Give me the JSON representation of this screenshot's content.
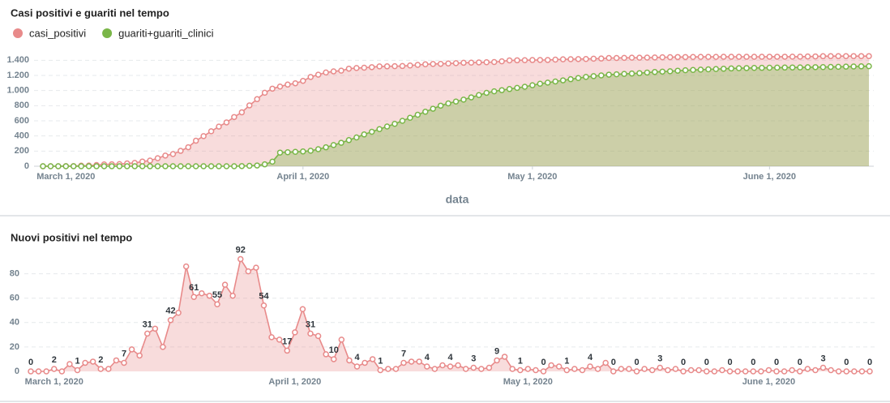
{
  "chart_data": [
    {
      "type": "area",
      "title": "Casi positivi e guariti nel tempo",
      "x_label": "data",
      "legend": "top-left",
      "grid": true,
      "x": [
        "2020-02-27",
        "2020-02-28",
        "2020-02-29",
        "2020-03-01",
        "2020-03-02",
        "2020-03-03",
        "2020-03-04",
        "2020-03-05",
        "2020-03-06",
        "2020-03-07",
        "2020-03-08",
        "2020-03-09",
        "2020-03-10",
        "2020-03-11",
        "2020-03-12",
        "2020-03-13",
        "2020-03-14",
        "2020-03-15",
        "2020-03-16",
        "2020-03-17",
        "2020-03-18",
        "2020-03-19",
        "2020-03-20",
        "2020-03-21",
        "2020-03-22",
        "2020-03-23",
        "2020-03-24",
        "2020-03-25",
        "2020-03-26",
        "2020-03-27",
        "2020-03-28",
        "2020-03-29",
        "2020-03-30",
        "2020-03-31",
        "2020-04-01",
        "2020-04-02",
        "2020-04-03",
        "2020-04-04",
        "2020-04-05",
        "2020-04-06",
        "2020-04-07",
        "2020-04-08",
        "2020-04-09",
        "2020-04-10",
        "2020-04-11",
        "2020-04-12",
        "2020-04-13",
        "2020-04-14",
        "2020-04-15",
        "2020-04-16",
        "2020-04-17",
        "2020-04-18",
        "2020-04-19",
        "2020-04-20",
        "2020-04-21",
        "2020-04-22",
        "2020-04-23",
        "2020-04-24",
        "2020-04-25",
        "2020-04-26",
        "2020-04-27",
        "2020-04-28",
        "2020-04-29",
        "2020-04-30",
        "2020-05-01",
        "2020-05-02",
        "2020-05-03",
        "2020-05-04",
        "2020-05-05",
        "2020-05-06",
        "2020-05-07",
        "2020-05-08",
        "2020-05-09",
        "2020-05-10",
        "2020-05-11",
        "2020-05-12",
        "2020-05-13",
        "2020-05-14",
        "2020-05-15",
        "2020-05-16",
        "2020-05-17",
        "2020-05-18",
        "2020-05-19",
        "2020-05-20",
        "2020-05-21",
        "2020-05-22",
        "2020-05-23",
        "2020-05-24",
        "2020-05-25",
        "2020-05-26",
        "2020-05-27",
        "2020-05-28",
        "2020-05-29",
        "2020-05-30",
        "2020-05-31",
        "2020-06-01",
        "2020-06-02",
        "2020-06-03",
        "2020-06-04",
        "2020-06-05",
        "2020-06-06",
        "2020-06-07",
        "2020-06-08",
        "2020-06-09",
        "2020-06-10",
        "2020-06-11",
        "2020-06-12",
        "2020-06-13",
        "2020-06-14"
      ],
      "xlim": [
        "2020-02-27",
        "2020-06-14"
      ],
      "xticks": [
        {
          "value": "2020-03-01",
          "label": "March 1, 2020"
        },
        {
          "value": "2020-04-01",
          "label": "April 1, 2020"
        },
        {
          "value": "2020-05-01",
          "label": "May 1, 2020"
        },
        {
          "value": "2020-06-01",
          "label": "June 1, 2020"
        }
      ],
      "ylim": [
        0,
        1500
      ],
      "yticks": [
        0,
        200,
        400,
        600,
        800,
        {
          "value": 1000,
          "label": "1.000"
        },
        {
          "value": 1200,
          "label": "1.200"
        },
        {
          "value": 1400,
          "label": "1.400"
        }
      ],
      "series": [
        {
          "name": "casi_positivi",
          "color": "#e88a8a",
          "values": [
            0,
            0,
            0,
            2,
            2,
            8,
            9,
            16,
            24,
            26,
            28,
            37,
            44,
            62,
            75,
            106,
            141,
            161,
            203,
            251,
            337,
            398,
            462,
            524,
            579,
            650,
            712,
            804,
            886,
            971,
            1025,
            1053,
            1079,
            1096,
            1128,
            1179,
            1210,
            1239,
            1253,
            1263,
            1289,
            1298,
            1302,
            1309,
            1319,
            1320,
            1322,
            1324,
            1331,
            1339,
            1347,
            1351,
            1353,
            1358,
            1362,
            1367,
            1369,
            1372,
            1374,
            1377,
            1386,
            1398,
            1400,
            1401,
            1403,
            1404,
            1404,
            1409,
            1413,
            1414,
            1416,
            1417,
            1421,
            1423,
            1430,
            1430,
            1432,
            1434,
            1434,
            1436,
            1437,
            1440,
            1441,
            1443,
            1443,
            1444,
            1445,
            1445,
            1445,
            1446,
            1446,
            1446,
            1446,
            1446,
            1446,
            1447,
            1447,
            1447,
            1448,
            1448,
            1450,
            1451,
            1454,
            1455,
            1455,
            1455,
            1455,
            1455,
            1455
          ]
        },
        {
          "name": "guariti+guariti_clinici",
          "color": "#7ab648",
          "values": [
            0,
            0,
            0,
            0,
            0,
            0,
            0,
            0,
            0,
            0,
            0,
            0,
            0,
            0,
            0,
            0,
            0,
            0,
            0,
            0,
            0,
            0,
            0,
            0,
            0,
            0,
            2,
            5,
            10,
            25,
            60,
            180,
            185,
            190,
            195,
            205,
            225,
            250,
            280,
            310,
            345,
            380,
            420,
            455,
            490,
            525,
            560,
            600,
            640,
            680,
            720,
            760,
            800,
            830,
            855,
            880,
            910,
            940,
            970,
            990,
            1005,
            1020,
            1035,
            1050,
            1070,
            1090,
            1105,
            1120,
            1135,
            1150,
            1165,
            1180,
            1190,
            1200,
            1210,
            1215,
            1220,
            1225,
            1230,
            1238,
            1245,
            1250,
            1255,
            1262,
            1268,
            1272,
            1276,
            1280,
            1284,
            1288,
            1292,
            1295,
            1297,
            1299,
            1300,
            1302,
            1303,
            1304,
            1305,
            1306,
            1308,
            1309,
            1310,
            1312,
            1314,
            1316,
            1318,
            1320,
            1322
          ]
        }
      ]
    },
    {
      "type": "area",
      "title": "Nuovi positivi nel tempo",
      "grid": true,
      "color": "#e88a8a",
      "x": [
        "2020-02-27",
        "2020-02-28",
        "2020-02-29",
        "2020-03-01",
        "2020-03-02",
        "2020-03-03",
        "2020-03-04",
        "2020-03-05",
        "2020-03-06",
        "2020-03-07",
        "2020-03-08",
        "2020-03-09",
        "2020-03-10",
        "2020-03-11",
        "2020-03-12",
        "2020-03-13",
        "2020-03-14",
        "2020-03-15",
        "2020-03-16",
        "2020-03-17",
        "2020-03-18",
        "2020-03-19",
        "2020-03-20",
        "2020-03-21",
        "2020-03-22",
        "2020-03-23",
        "2020-03-24",
        "2020-03-25",
        "2020-03-26",
        "2020-03-27",
        "2020-03-28",
        "2020-03-29",
        "2020-03-30",
        "2020-03-31",
        "2020-04-01",
        "2020-04-02",
        "2020-04-03",
        "2020-04-04",
        "2020-04-05",
        "2020-04-06",
        "2020-04-07",
        "2020-04-08",
        "2020-04-09",
        "2020-04-10",
        "2020-04-11",
        "2020-04-12",
        "2020-04-13",
        "2020-04-14",
        "2020-04-15",
        "2020-04-16",
        "2020-04-17",
        "2020-04-18",
        "2020-04-19",
        "2020-04-20",
        "2020-04-21",
        "2020-04-22",
        "2020-04-23",
        "2020-04-24",
        "2020-04-25",
        "2020-04-26",
        "2020-04-27",
        "2020-04-28",
        "2020-04-29",
        "2020-04-30",
        "2020-05-01",
        "2020-05-02",
        "2020-05-03",
        "2020-05-04",
        "2020-05-05",
        "2020-05-06",
        "2020-05-07",
        "2020-05-08",
        "2020-05-09",
        "2020-05-10",
        "2020-05-11",
        "2020-05-12",
        "2020-05-13",
        "2020-05-14",
        "2020-05-15",
        "2020-05-16",
        "2020-05-17",
        "2020-05-18",
        "2020-05-19",
        "2020-05-20",
        "2020-05-21",
        "2020-05-22",
        "2020-05-23",
        "2020-05-24",
        "2020-05-25",
        "2020-05-26",
        "2020-05-27",
        "2020-05-28",
        "2020-05-29",
        "2020-05-30",
        "2020-05-31",
        "2020-06-01",
        "2020-06-02",
        "2020-06-03",
        "2020-06-04",
        "2020-06-05",
        "2020-06-06",
        "2020-06-07",
        "2020-06-08",
        "2020-06-09",
        "2020-06-10",
        "2020-06-11",
        "2020-06-12",
        "2020-06-13",
        "2020-06-14"
      ],
      "xlim": [
        "2020-02-27",
        "2020-06-14"
      ],
      "xticks": [
        {
          "value": "2020-03-01",
          "label": "March 1, 2020"
        },
        {
          "value": "2020-04-01",
          "label": "April 1, 2020"
        },
        {
          "value": "2020-05-01",
          "label": "May 1, 2020"
        },
        {
          "value": "2020-06-01",
          "label": "June 1, 2020"
        }
      ],
      "ylim": [
        0,
        105
      ],
      "yticks": [
        0,
        20,
        40,
        60,
        80
      ],
      "values": [
        0,
        0,
        0,
        2,
        0,
        6,
        1,
        7,
        8,
        2,
        2,
        9,
        7,
        18,
        13,
        31,
        35,
        20,
        42,
        48,
        86,
        61,
        64,
        62,
        55,
        71,
        62,
        92,
        82,
        85,
        54,
        28,
        26,
        17,
        32,
        51,
        31,
        29,
        14,
        10,
        26,
        9,
        4,
        7,
        10,
        1,
        2,
        2,
        7,
        8,
        8,
        4,
        2,
        5,
        4,
        5,
        2,
        3,
        2,
        3,
        9,
        12,
        2,
        1,
        2,
        1,
        0,
        5,
        4,
        1,
        2,
        1,
        4,
        2,
        7,
        0,
        2,
        2,
        0,
        2,
        1,
        3,
        1,
        2,
        0,
        1,
        1,
        0,
        0,
        1,
        0,
        0,
        0,
        0,
        0,
        1,
        0,
        0,
        1,
        0,
        2,
        1,
        3,
        1,
        0,
        0,
        0,
        0,
        0
      ],
      "value_labels": [
        "0",
        null,
        null,
        "2",
        null,
        null,
        "1",
        null,
        null,
        "2",
        null,
        null,
        "7",
        null,
        null,
        "31",
        null,
        null,
        "42",
        null,
        null,
        "61",
        null,
        null,
        "55",
        null,
        null,
        "92",
        null,
        null,
        "54",
        null,
        null,
        "17",
        null,
        null,
        "31",
        null,
        null,
        "10",
        null,
        null,
        "4",
        null,
        null,
        "1",
        null,
        null,
        "7",
        null,
        null,
        "4",
        null,
        null,
        "4",
        null,
        null,
        "3",
        null,
        null,
        "9",
        null,
        null,
        "1",
        null,
        null,
        "0",
        null,
        null,
        "1",
        null,
        null,
        "4",
        null,
        null,
        "0",
        null,
        null,
        "0",
        null,
        null,
        "3",
        null,
        null,
        "0",
        null,
        null,
        "0",
        null,
        null,
        "0",
        null,
        null,
        "0",
        null,
        null,
        "0",
        null,
        null,
        "0",
        null,
        null,
        "3",
        null,
        null,
        "0",
        null,
        null,
        "0"
      ]
    }
  ]
}
